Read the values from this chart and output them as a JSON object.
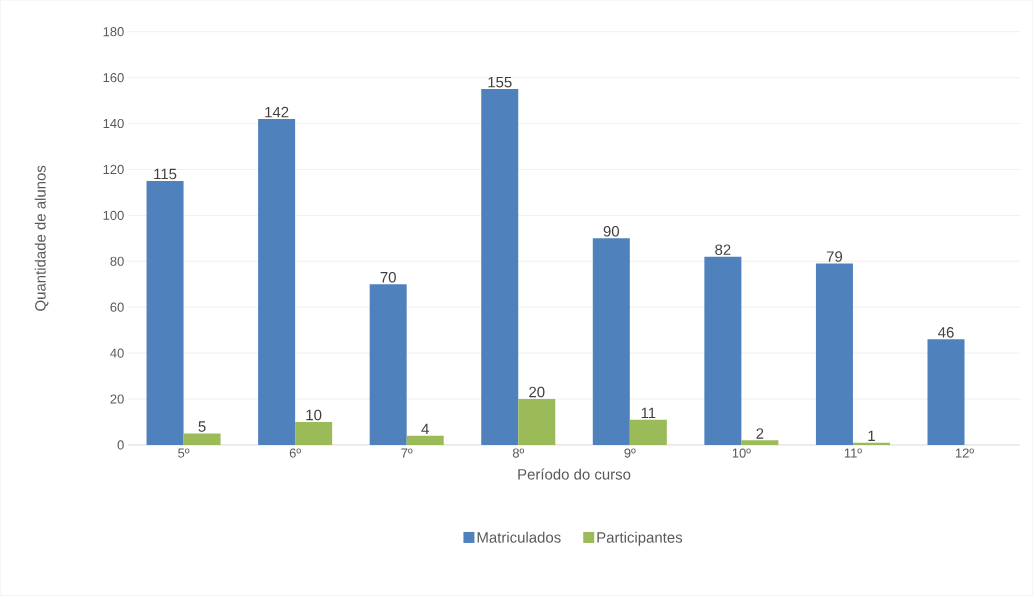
{
  "chart_data": {
    "type": "bar",
    "xlabel": "Período do curso",
    "ylabel": "Quantidade de alunos",
    "categories": [
      "5º",
      "6º",
      "7º",
      "8º",
      "9º",
      "10º",
      "11º",
      "12º"
    ],
    "series": [
      {
        "name": "Matriculados",
        "color": "#4f81bd",
        "values": [
          115,
          142,
          70,
          155,
          90,
          82,
          79,
          46
        ]
      },
      {
        "name": "Participantes",
        "color": "#9bbb59",
        "values": [
          5,
          10,
          4,
          20,
          11,
          2,
          1,
          null
        ]
      }
    ],
    "ylim": [
      0,
      180
    ],
    "yticks": [
      0,
      20,
      40,
      60,
      80,
      100,
      120,
      140,
      160,
      180
    ],
    "grid": "y",
    "legend": "bottom",
    "data_labels": true
  }
}
